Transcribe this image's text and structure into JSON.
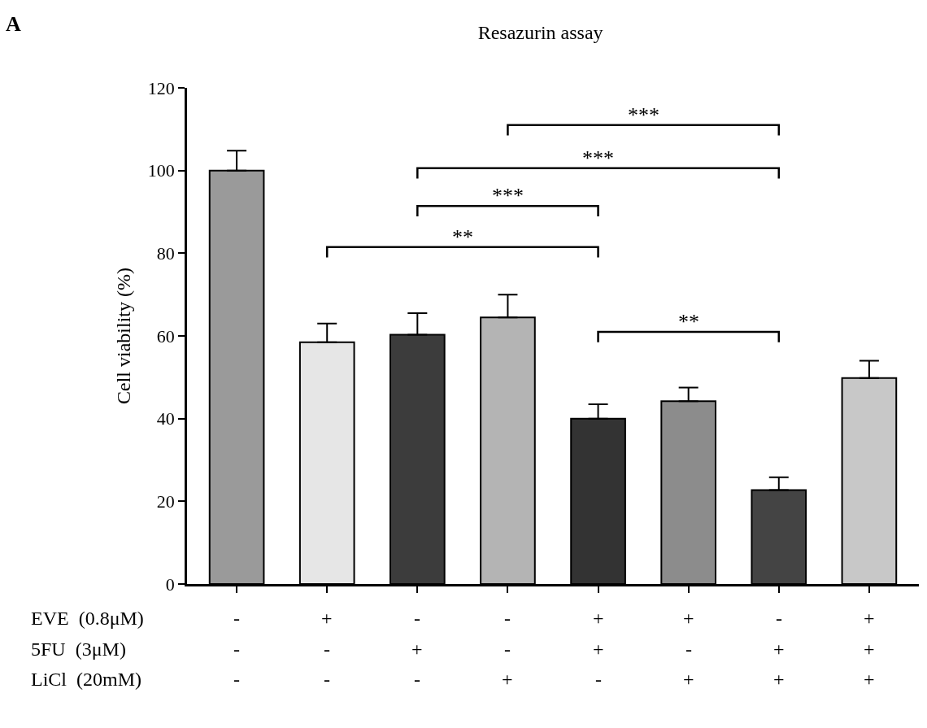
{
  "chart_data": {
    "type": "bar",
    "title": "Resazurin assay",
    "ylabel": "Cell viability (%)",
    "categories": [
      "-\n-\n-",
      "+\n-\n-",
      "-\n+\n-",
      "-\n-\n+",
      "+\n+\n-",
      "+\n-\n+",
      "-\n+\n+",
      "+\n+\n+"
    ],
    "values": [
      100,
      58.5,
      60.3,
      64.5,
      40,
      44.2,
      22.7,
      49.8
    ],
    "errors": [
      [
        100,
        104.8
      ],
      [
        58.5,
        63
      ],
      [
        60.3,
        65.5
      ],
      [
        64.5,
        70
      ],
      [
        40,
        43.5
      ],
      [
        44.2,
        47.5
      ],
      [
        22.7,
        25.8
      ],
      [
        49.8,
        54
      ]
    ],
    "colors": [
      "#9a9a9a",
      "#e6e6e6",
      "#3c3c3c",
      "#b4b4b4",
      "#333333",
      "#8c8c8c",
      "#444444",
      "#c8c8c8"
    ],
    "ylim": [
      0,
      120
    ],
    "yticks": [
      0,
      20,
      40,
      60,
      80,
      100,
      120
    ],
    "annotations": [
      "**",
      "***",
      "***",
      "***",
      "**",
      "EVE  (0.8μM)",
      "5FU  (3μM)",
      "LiCl  (20mM)",
      "A"
    ]
  }
}
